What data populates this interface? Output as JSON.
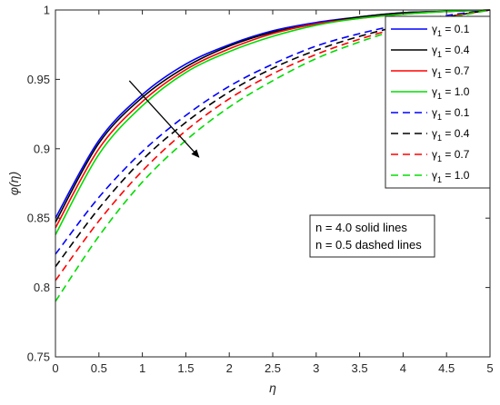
{
  "chart_data": {
    "type": "line",
    "xlabel": "η",
    "ylabel": "φ(η)",
    "xlim": [
      0,
      5
    ],
    "ylim": [
      0.75,
      1
    ],
    "xticks": [
      "0",
      "0.5",
      "1",
      "1.5",
      "2",
      "2.5",
      "3",
      "3.5",
      "4",
      "4.5",
      "5"
    ],
    "yticks": [
      "0.75",
      "0.8",
      "0.85",
      "0.9",
      "0.95",
      "1"
    ],
    "grid": false,
    "legend_position": "top-right",
    "series": [
      {
        "name": "γ1 = 0.1",
        "legend_symbol": "γ",
        "legend_sub": "1",
        "legend_value": "= 0.1",
        "color": "#0000ff",
        "style": "solid",
        "x": [
          0,
          0.5,
          1,
          1.5,
          2,
          2.5,
          3,
          3.5,
          4,
          4.5,
          5
        ],
        "y": [
          0.85,
          0.906,
          0.939,
          0.961,
          0.975,
          0.985,
          0.991,
          0.995,
          0.998,
          0.999,
          1.0
        ]
      },
      {
        "name": "γ1 = 0.4",
        "legend_symbol": "γ",
        "legend_sub": "1",
        "legend_value": "= 0.4",
        "color": "#000000",
        "style": "solid",
        "x": [
          0,
          0.5,
          1,
          1.5,
          2,
          2.5,
          3,
          3.5,
          4,
          4.5,
          5
        ],
        "y": [
          0.847,
          0.904,
          0.937,
          0.959,
          0.974,
          0.984,
          0.99,
          0.995,
          0.998,
          0.999,
          1.0
        ]
      },
      {
        "name": "γ1 = 0.7",
        "legend_symbol": "γ",
        "legend_sub": "1",
        "legend_value": "= 0.7",
        "color": "#ff0000",
        "style": "solid",
        "x": [
          0,
          0.5,
          1,
          1.5,
          2,
          2.5,
          3,
          3.5,
          4,
          4.5,
          5
        ],
        "y": [
          0.843,
          0.9,
          0.934,
          0.957,
          0.972,
          0.983,
          0.99,
          0.994,
          0.997,
          0.999,
          1.0
        ]
      },
      {
        "name": "γ1 = 1.0",
        "legend_symbol": "γ",
        "legend_sub": "1",
        "legend_value": "= 1.0",
        "color": "#00dd00",
        "style": "solid",
        "x": [
          0,
          0.5,
          1,
          1.5,
          2,
          2.5,
          3,
          3.5,
          4,
          4.5,
          5
        ],
        "y": [
          0.838,
          0.896,
          0.931,
          0.955,
          0.97,
          0.981,
          0.989,
          0.994,
          0.997,
          0.999,
          1.0
        ]
      },
      {
        "name": "γ1 = 0.1",
        "legend_symbol": "γ",
        "legend_sub": "1",
        "legend_value": "= 0.1",
        "color": "#0000ff",
        "style": "dashed",
        "x": [
          0,
          0.5,
          1,
          1.5,
          2,
          2.5,
          3,
          3.5,
          4,
          4.5,
          5
        ],
        "y": [
          0.824,
          0.865,
          0.898,
          0.924,
          0.945,
          0.961,
          0.974,
          0.983,
          0.99,
          0.996,
          1.0
        ]
      },
      {
        "name": "γ1 = 0.4",
        "legend_symbol": "γ",
        "legend_sub": "1",
        "legend_value": "= 0.4",
        "color": "#000000",
        "style": "dashed",
        "x": [
          0,
          0.5,
          1,
          1.5,
          2,
          2.5,
          3,
          3.5,
          4,
          4.5,
          5
        ],
        "y": [
          0.815,
          0.857,
          0.892,
          0.919,
          0.941,
          0.958,
          0.971,
          0.981,
          0.989,
          0.995,
          1.0
        ]
      },
      {
        "name": "γ1 = 0.7",
        "legend_symbol": "γ",
        "legend_sub": "1",
        "legend_value": "= 0.7",
        "color": "#ff0000",
        "style": "dashed",
        "x": [
          0,
          0.5,
          1,
          1.5,
          2,
          2.5,
          3,
          3.5,
          4,
          4.5,
          5
        ],
        "y": [
          0.805,
          0.848,
          0.884,
          0.913,
          0.936,
          0.954,
          0.968,
          0.979,
          0.988,
          0.995,
          1.0
        ]
      },
      {
        "name": "γ1 = 1.0",
        "legend_symbol": "γ",
        "legend_sub": "1",
        "legend_value": "= 1.0",
        "color": "#00dd00",
        "style": "dashed",
        "x": [
          0,
          0.5,
          1,
          1.5,
          2,
          2.5,
          3,
          3.5,
          4,
          4.5,
          5
        ],
        "y": [
          0.79,
          0.837,
          0.876,
          0.906,
          0.93,
          0.949,
          0.965,
          0.977,
          0.987,
          0.994,
          1.0
        ]
      }
    ],
    "annotations": [
      "n = 4.0 solid lines",
      "n = 0.5 dashed lines"
    ],
    "arrow": {
      "from": [
        0.85,
        0.949
      ],
      "to": [
        1.65,
        0.894
      ]
    }
  }
}
